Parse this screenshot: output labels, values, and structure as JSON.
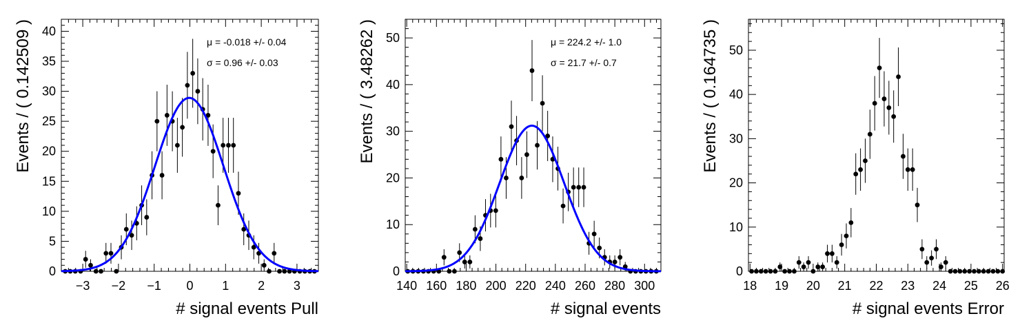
{
  "chart_data": [
    {
      "type": "scatter",
      "xlabel": "# signal events Pull",
      "ylabel": "Events / ( 0.142509 )",
      "xlim": [
        -3.6,
        3.6
      ],
      "ylim": [
        0,
        42
      ],
      "xticks": [
        -3,
        -2,
        -1,
        0,
        1,
        2,
        3
      ],
      "yticks": [
        0,
        5,
        10,
        15,
        20,
        25,
        30,
        35,
        40
      ],
      "legend": "none",
      "grid": false,
      "annotations": [
        "μ = -0.018 +/- 0.04",
        "σ =  0.96 +/- 0.03"
      ],
      "fit": {
        "type": "gaussian",
        "mean": -0.018,
        "sigma": 0.96,
        "amplitude": 28.9,
        "color": "#0000ff"
      },
      "series": [
        {
          "x": [
            -3.49,
            -3.35,
            -3.21,
            -3.06,
            -2.92,
            -2.78,
            -2.63,
            -2.49,
            -2.35,
            -2.21,
            -2.06,
            -1.92,
            -1.78,
            -1.63,
            -1.49,
            -1.35,
            -1.21,
            -1.06,
            -0.92,
            -0.78,
            -0.64,
            -0.49,
            -0.35,
            -0.21,
            -0.07,
            0.08,
            0.22,
            0.36,
            0.51,
            0.65,
            0.79,
            0.93,
            1.08,
            1.22,
            1.36,
            1.51,
            1.65,
            1.79,
            1.93,
            2.08,
            2.22,
            2.36,
            2.51,
            2.65,
            2.79,
            2.93,
            3.08,
            3.22,
            3.36,
            3.49
          ],
          "y": [
            0,
            0,
            0,
            0,
            2,
            1,
            0,
            0,
            3,
            3,
            0,
            4,
            7,
            6,
            8,
            11,
            9,
            16,
            25,
            16,
            26,
            25,
            21,
            24,
            31,
            33,
            30,
            27,
            26,
            20,
            11,
            21,
            21,
            21,
            13,
            7,
            6,
            4,
            3,
            1,
            0,
            3,
            0,
            0,
            0,
            0,
            0,
            0,
            0,
            0
          ]
        }
      ]
    },
    {
      "type": "scatter",
      "xlabel": "# signal events",
      "ylabel": "Events / ( 3.48262 )",
      "xlim": [
        139,
        311
      ],
      "ylim": [
        0,
        54
      ],
      "xticks": [
        140,
        160,
        180,
        200,
        220,
        240,
        260,
        280,
        300
      ],
      "yticks": [
        0,
        10,
        20,
        30,
        40,
        50
      ],
      "legend": "none",
      "grid": false,
      "annotations": [
        "μ =  224.2 +/- 1.0",
        "σ =  21.7 +/- 0.7"
      ],
      "fit": {
        "type": "gaussian",
        "mean": 224.2,
        "sigma": 21.7,
        "amplitude": 31.2,
        "color": "#0000ff"
      },
      "series": [
        {
          "x": [
            140.7,
            144.2,
            147.7,
            151.2,
            154.6,
            158.1,
            161.6,
            165.1,
            168.6,
            172.1,
            175.5,
            179.0,
            182.5,
            186.0,
            189.5,
            193.0,
            196.4,
            199.9,
            203.4,
            206.9,
            210.4,
            213.9,
            217.3,
            220.8,
            224.3,
            227.8,
            231.3,
            234.8,
            238.2,
            241.7,
            245.2,
            248.7,
            252.2,
            255.7,
            259.1,
            262.6,
            266.1,
            269.6,
            273.1,
            276.6,
            280.0,
            283.5,
            287.0,
            290.5,
            294.0,
            297.5,
            300.9,
            304.4,
            307.9
          ],
          "y": [
            0,
            0,
            0,
            0,
            0,
            0,
            0,
            3,
            0,
            0,
            4,
            2,
            2,
            9,
            7,
            12,
            13,
            13,
            24,
            20,
            31,
            28,
            20,
            25,
            43,
            27,
            36,
            29,
            24,
            22,
            14,
            17,
            18,
            18,
            18,
            6,
            8,
            5,
            3,
            2,
            2,
            3,
            1,
            0,
            0,
            0,
            0,
            0,
            0
          ]
        }
      ]
    },
    {
      "type": "scatter",
      "xlabel": "# signal events Error",
      "ylabel": "Events / ( 0.164735 )",
      "xlim": [
        17.95,
        26.05
      ],
      "ylim": [
        0,
        57
      ],
      "xticks": [
        18,
        19,
        20,
        21,
        22,
        23,
        24,
        25,
        26
      ],
      "yticks": [
        0,
        10,
        20,
        30,
        40,
        50
      ],
      "legend": "none",
      "grid": false,
      "series": [
        {
          "x": [
            18.05,
            18.2,
            18.35,
            18.5,
            18.65,
            18.8,
            18.95,
            19.1,
            19.25,
            19.4,
            19.55,
            19.7,
            19.85,
            20.0,
            20.15,
            20.3,
            20.45,
            20.6,
            20.75,
            20.9,
            21.05,
            21.2,
            21.35,
            21.5,
            21.65,
            21.8,
            21.95,
            22.1,
            22.25,
            22.4,
            22.55,
            22.7,
            22.85,
            23.0,
            23.15,
            23.3,
            23.45,
            23.6,
            23.75,
            23.9,
            24.05,
            24.2,
            24.35,
            24.5,
            24.65,
            24.8,
            24.95,
            25.1,
            25.25,
            25.4,
            25.55,
            25.7,
            25.85,
            26.0
          ],
          "y": [
            0,
            0,
            0,
            0,
            0,
            0,
            1,
            0,
            0,
            0,
            2,
            1,
            2,
            0,
            1,
            1,
            4,
            4,
            2,
            6,
            8,
            11,
            22,
            23,
            25,
            31,
            38,
            46,
            39,
            37,
            35,
            44,
            26,
            23,
            23,
            15,
            5,
            2,
            3,
            5,
            1,
            2,
            0,
            0,
            0,
            0,
            0,
            0,
            0,
            0,
            0,
            0,
            0,
            0
          ]
        }
      ]
    }
  ]
}
